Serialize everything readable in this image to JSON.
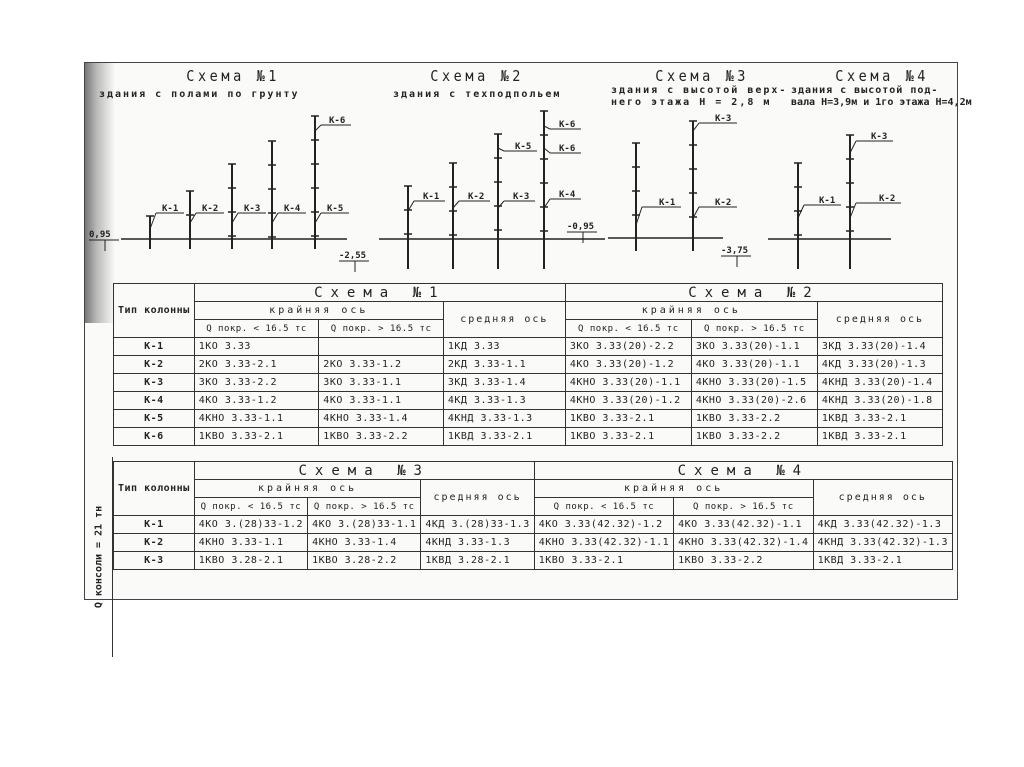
{
  "schemes": [
    {
      "title": "Схема №1",
      "subtitle": [
        "здания с полами по грунту"
      ]
    },
    {
      "title": "Схема №2",
      "subtitle": [
        "здания с техподпольем"
      ]
    },
    {
      "title": "Схема №3",
      "subtitle": [
        "здания с высотой верх-",
        "него этажа Н = 2,8 м"
      ]
    },
    {
      "title": "Схема №4",
      "subtitle": [
        "здания с высотой под-",
        "вала Н=3,9м и 1го этажа Н=4,2м"
      ]
    }
  ],
  "diagram_labels": {
    "s1": [
      "К-1",
      "К-2",
      "К-3",
      "К-4",
      "К-5",
      "К-6"
    ],
    "s1_level": "0,95",
    "s2": [
      "К-1",
      "К-2",
      "К-3",
      "К-4",
      "К-5",
      "К-6"
    ],
    "s2_level": "-2,55",
    "s2_level2": "-0,95",
    "s3": [
      "К-1",
      "К-2",
      "К-3"
    ],
    "s3_level": "-3,75",
    "s4": [
      "К-1",
      "К-2",
      "К-3"
    ]
  },
  "side_label": "Q консоли = 21 тн",
  "table": {
    "type_col": "Тип колонны",
    "edge_axis": "крайняя ось",
    "middle_axis": "средняя ось",
    "q_less": "Q покр. < 16.5 тс",
    "q_more": "Q покр. > 16.5 тс",
    "block1": {
      "left_title": "Схема №1",
      "right_title": "Схема №2",
      "rows": [
        [
          "К-1",
          "1КО 3.33",
          "",
          "1КД 3.33",
          "3КО 3.33(20)-2.2",
          "3КО 3.33(20)-1.1",
          "3КД 3.33(20)-1.4"
        ],
        [
          "К-2",
          "2КО 3.33-2.1",
          "2КО 3.33-1.2",
          "2КД 3.33-1.1",
          "4КО 3.33(20)-1.2",
          "4КО 3.33(20)-1.1",
          "4КД 3.33(20)-1.3"
        ],
        [
          "К-3",
          "3КО 3.33-2.2",
          "3КО 3.33-1.1",
          "3КД 3.33-1.4",
          "4КНО 3.33(20)-1.1",
          "4КНО 3.33(20)-1.5",
          "4КНД 3.33(20)-1.4"
        ],
        [
          "К-4",
          "4КО 3.33-1.2",
          "4КО 3.33-1.1",
          "4КД 3.33-1.3",
          "4КНО 3.33(20)-1.2",
          "4КНО 3.33(20)-2.6",
          "4КНД 3.33(20)-1.8"
        ],
        [
          "К-5",
          "4КНО 3.33-1.1",
          "4КНО 3.33-1.4",
          "4КНД 3.33-1.3",
          "1КВО 3.33-2.1",
          "1КВО 3.33-2.2",
          "1КВД 3.33-2.1"
        ],
        [
          "К-6",
          "1КВО 3.33-2.1",
          "1КВО 3.33-2.2",
          "1КВД 3.33-2.1",
          "1КВО 3.33-2.1",
          "1КВО 3.33-2.2",
          "1КВД 3.33-2.1"
        ]
      ]
    },
    "block2": {
      "left_title": "Схема №3",
      "right_title": "Схема №4",
      "rows": [
        [
          "К-1",
          "4КО 3.(28)33-1.2",
          "4КО 3.(28)33-1.1",
          "4КД 3.(28)33-1.3",
          "4КО 3.33(42.32)-1.2",
          "4КО 3.33(42.32)-1.1",
          "4КД 3.33(42.32)-1.3"
        ],
        [
          "К-2",
          "4КНО 3.33-1.1",
          "4КНО 3.33-1.4",
          "4КНД 3.33-1.3",
          "4КНО 3.33(42.32)-1.1",
          "4КНО 3.33(42.32)-1.4",
          "4КНД 3.33(42.32)-1.3"
        ],
        [
          "К-3",
          "1КВО 3.28-2.1",
          "1КВО 3.28-2.2",
          "1КВД 3.28-2.1",
          "1КВО 3.33-2.1",
          "1КВО 3.33-2.2",
          "1КВД 3.33-2.1"
        ]
      ]
    }
  }
}
